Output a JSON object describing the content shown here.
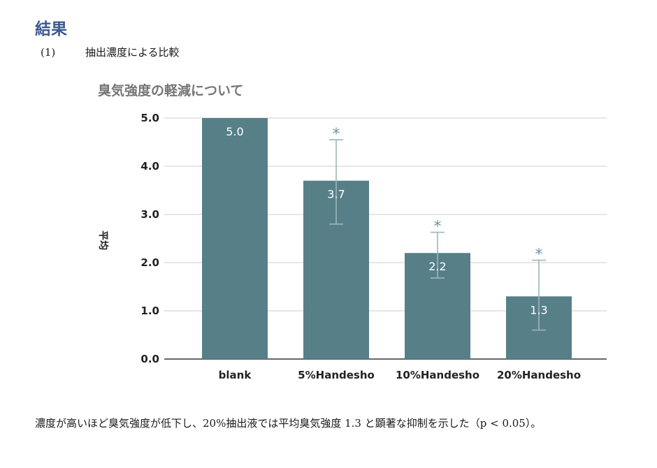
{
  "heading": "結果",
  "subsection": {
    "number": "(1)",
    "title": "抽出濃度による比較"
  },
  "colors": {
    "heading": "#3d5a8c",
    "bar": "#577f88",
    "error_bar": "#9fb5bb",
    "grid": "#cccccc",
    "asterisk": "#6f93a3"
  },
  "chart_data": {
    "type": "bar",
    "title": "臭気強度の軽減について",
    "ylabel": "平均",
    "xlabel": "",
    "ylim": [
      0,
      5
    ],
    "yticks": [
      "0.0",
      "1.0",
      "2.0",
      "3.0",
      "4.0",
      "5.0"
    ],
    "categories": [
      "blank",
      "5%Handesho",
      "10%Handesho",
      "20%Handesho"
    ],
    "values": [
      5.0,
      3.7,
      2.2,
      1.3
    ],
    "value_labels": [
      "5.0",
      "3.7",
      "2.2",
      "1.3"
    ],
    "error_high": [
      null,
      4.55,
      2.63,
      2.05
    ],
    "error_low": [
      null,
      2.8,
      1.68,
      0.6
    ],
    "significance": [
      "",
      "*",
      "*",
      "*"
    ],
    "grid": true
  },
  "conclusion": "濃度が高いほど臭気強度が低下し、20%抽出液では平均臭気強度 1.3 と顕著な抑制を示した（p < 0.05）。"
}
